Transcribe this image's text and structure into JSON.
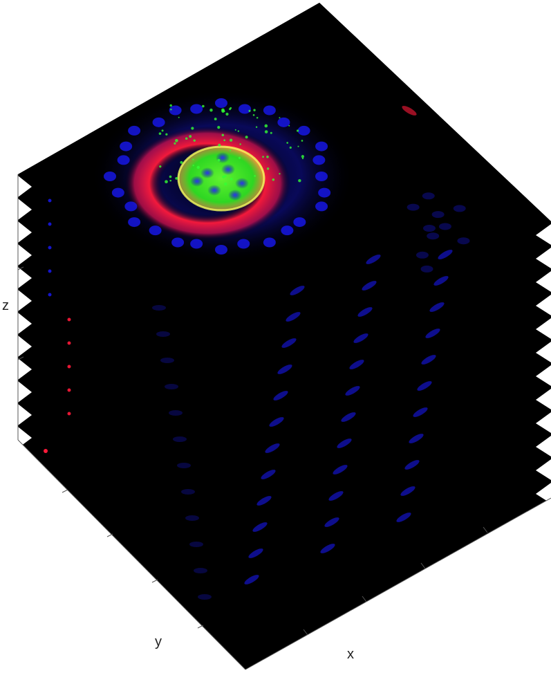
{
  "figure": {
    "axes": {
      "x_label": "x",
      "y_label": "y",
      "z_label": "z"
    },
    "slices": {
      "count": 12
    },
    "channels": {
      "nuclei": "#1a1aff",
      "membrane": "#ff1a3a",
      "marker": "#33ff33",
      "background": "#000000"
    }
  }
}
